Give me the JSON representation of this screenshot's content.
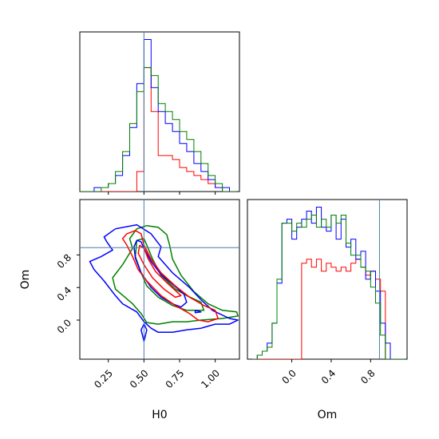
{
  "chart_data": {
    "type": "corner",
    "params": [
      "H0",
      "Om"
    ],
    "truth": {
      "H0": 0.5,
      "Om": 0.89
    },
    "x_labels": {
      "H0": "H0",
      "Om": "Om"
    },
    "y_labels": {
      "Om": "Om"
    },
    "panels": [
      {
        "id": "H0-histogram",
        "type": "histogram",
        "param": "H0",
        "xlim": [
          0.05,
          1.17
        ],
        "x_ticks": [
          0.25,
          0.5,
          0.75,
          1.0
        ],
        "bin_edges": [
          0.05,
          0.1,
          0.15,
          0.2,
          0.25,
          0.3,
          0.35,
          0.4,
          0.45,
          0.5,
          0.55,
          0.6,
          0.65,
          0.7,
          0.75,
          0.8,
          0.85,
          0.9,
          0.95,
          1.0,
          1.05,
          1.1,
          1.15
        ],
        "series": [
          {
            "name": "",
            "color": "#ff0000",
            "counts": [
              0,
              0,
              0,
              0,
              0,
              0,
              0,
              0,
              5,
              31,
              20,
              9,
              9,
              8,
              6,
              5,
              4,
              3,
              2,
              1,
              0,
              0
            ]
          },
          {
            "name": "",
            "color": "#0000ff",
            "counts": [
              0,
              0,
              1,
              1,
              2,
              4,
              9,
              16,
              27,
              38,
              26,
              20,
              17,
              15,
              12,
              10,
              7,
              5,
              3,
              1,
              1,
              0
            ]
          },
          {
            "name": "",
            "color": "#008000",
            "counts": [
              0,
              0,
              0,
              1,
              2,
              5,
              10,
              17,
              25,
              31,
              29,
              22,
              20,
              18,
              15,
              13,
              10,
              7,
              4,
              2,
              0,
              0
            ]
          }
        ]
      },
      {
        "id": "Om-histogram",
        "type": "histogram",
        "param": "Om",
        "xlim": [
          -0.45,
          1.17
        ],
        "x_ticks": [
          0.0,
          0.4,
          0.8
        ],
        "bin_edges": [
          -0.4,
          -0.35,
          -0.3,
          -0.25,
          -0.2,
          -0.15,
          -0.1,
          -0.05,
          0.0,
          0.05,
          0.1,
          0.15,
          0.2,
          0.25,
          0.3,
          0.35,
          0.4,
          0.45,
          0.5,
          0.55,
          0.6,
          0.65,
          0.7,
          0.75,
          0.8,
          0.85,
          0.9,
          0.95,
          1.0,
          1.05,
          1.1,
          1.15
        ],
        "series": [
          {
            "name": "",
            "color": "#ff0000",
            "counts": [
              0,
              0,
              0,
              0,
              0,
              0,
              0,
              0,
              0,
              0,
              24,
              25,
              23,
              25,
              22,
              24,
              23,
              22,
              23,
              22,
              24,
              25,
              23,
              21,
              22,
              20,
              17,
              0,
              0,
              0,
              0
            ]
          },
          {
            "name": "",
            "color": "#0000ff",
            "counts": [
              0,
              1,
              2,
              4,
              9,
              19,
              34,
              35,
              30,
              33,
              35,
              37,
              34,
              38,
              33,
              32,
              36,
              30,
              35,
              28,
              30,
              25,
              27,
              20,
              22,
              17,
              9,
              4,
              0,
              0,
              0
            ]
          },
          {
            "name": "",
            "color": "#008000",
            "counts": [
              0,
              1,
              2,
              3,
              9,
              20,
              34,
              34,
              32,
              34,
              33,
              35,
              36,
              33,
              35,
              33,
              36,
              34,
              36,
              29,
              26,
              26,
              23,
              22,
              18,
              14,
              6,
              0,
              0,
              0,
              0
            ]
          }
        ]
      },
      {
        "id": "H0-Om-contour",
        "type": "contour",
        "x_param": "H0",
        "y_param": "Om",
        "xlim": [
          0.05,
          1.17
        ],
        "ylim": [
          -0.48,
          1.48
        ],
        "x_ticks": [
          0.25,
          0.5,
          0.75,
          1.0
        ],
        "y_ticks": [
          0.0,
          0.4,
          0.8
        ],
        "series": [
          {
            "name": "",
            "color": "#008000",
            "contours": [
              [
                [
                  0.45,
                  1.12
                ],
                [
                  0.52,
                  1.16
                ],
                [
                  0.6,
                  1.14
                ],
                [
                  0.66,
                  1.05
                ],
                [
                  0.68,
                  0.92
                ],
                [
                  0.7,
                  0.75
                ],
                [
                  0.76,
                  0.55
                ],
                [
                  0.85,
                  0.35
                ],
                [
                  0.95,
                  0.2
                ],
                [
                  1.05,
                  0.12
                ],
                [
                  1.15,
                  0.1
                ],
                [
                  1.16,
                  0.05
                ],
                [
                  1.05,
                  0.02
                ],
                [
                  0.9,
                  0.0
                ],
                [
                  0.8,
                  -0.02
                ],
                [
                  0.7,
                  -0.02
                ],
                [
                  0.6,
                  -0.05
                ],
                [
                  0.52,
                  -0.03
                ],
                [
                  0.48,
                  0.08
                ],
                [
                  0.42,
                  0.2
                ],
                [
                  0.3,
                  0.38
                ],
                [
                  0.28,
                  0.52
                ],
                [
                  0.35,
                  0.68
                ],
                [
                  0.42,
                  0.88
                ],
                [
                  0.4,
                  1.0
                ],
                [
                  0.45,
                  1.12
                ]
              ],
              [
                [
                  0.45,
                  0.98
                ],
                [
                  0.5,
                  1.0
                ],
                [
                  0.52,
                  0.92
                ],
                [
                  0.56,
                  0.75
                ],
                [
                  0.62,
                  0.55
                ],
                [
                  0.72,
                  0.38
                ],
                [
                  0.8,
                  0.3
                ],
                [
                  0.9,
                  0.22
                ],
                [
                  0.92,
                  0.12
                ],
                [
                  0.8,
                  0.12
                ],
                [
                  0.7,
                  0.18
                ],
                [
                  0.6,
                  0.28
                ],
                [
                  0.52,
                  0.42
                ],
                [
                  0.48,
                  0.58
                ],
                [
                  0.44,
                  0.78
                ],
                [
                  0.45,
                  0.98
                ]
              ]
            ]
          },
          {
            "name": "",
            "color": "#0000ff",
            "contours": [
              [
                [
                  0.3,
                  1.12
                ],
                [
                  0.45,
                  1.17
                ],
                [
                  0.55,
                  1.06
                ],
                [
                  0.62,
                  0.9
                ],
                [
                  0.6,
                  0.78
                ],
                [
                  0.7,
                  0.58
                ],
                [
                  0.82,
                  0.4
                ],
                [
                  0.9,
                  0.25
                ],
                [
                  0.98,
                  0.12
                ],
                [
                  1.1,
                  0.02
                ],
                [
                  1.16,
                  0.0
                ],
                [
                  1.1,
                  -0.05
                ],
                [
                  1.0,
                  -0.05
                ],
                [
                  0.9,
                  -0.1
                ],
                [
                  0.8,
                  -0.12
                ],
                [
                  0.7,
                  -0.15
                ],
                [
                  0.6,
                  -0.15
                ],
                [
                  0.55,
                  -0.1
                ],
                [
                  0.5,
                  -0.02
                ],
                [
                  0.45,
                  0.1
                ],
                [
                  0.35,
                  0.2
                ],
                [
                  0.3,
                  0.3
                ],
                [
                  0.22,
                  0.48
                ],
                [
                  0.15,
                  0.62
                ],
                [
                  0.12,
                  0.72
                ],
                [
                  0.2,
                  0.78
                ],
                [
                  0.28,
                  0.86
                ],
                [
                  0.24,
                  0.96
                ],
                [
                  0.22,
                  1.02
                ],
                [
                  0.3,
                  1.12
                ]
              ],
              [
                [
                  0.45,
                  0.98
                ],
                [
                  0.48,
                  0.96
                ],
                [
                  0.5,
                  0.88
                ],
                [
                  0.55,
                  0.72
                ],
                [
                  0.62,
                  0.56
                ],
                [
                  0.7,
                  0.44
                ],
                [
                  0.78,
                  0.32
                ],
                [
                  0.8,
                  0.22
                ],
                [
                  0.76,
                  0.16
                ],
                [
                  0.7,
                  0.2
                ],
                [
                  0.62,
                  0.28
                ],
                [
                  0.55,
                  0.4
                ],
                [
                  0.48,
                  0.58
                ],
                [
                  0.44,
                  0.76
                ],
                [
                  0.43,
                  0.9
                ],
                [
                  0.45,
                  0.98
                ]
              ],
              [
                [
                  0.5,
                  -0.05
                ],
                [
                  0.52,
                  -0.12
                ],
                [
                  0.5,
                  -0.26
                ],
                [
                  0.48,
                  -0.12
                ],
                [
                  0.5,
                  -0.05
                ]
              ],
              [
                [
                  0.86,
                  0.12
                ],
                [
                  0.9,
                  0.1
                ],
                [
                  0.86,
                  0.09
                ],
                [
                  0.86,
                  0.12
                ]
              ]
            ]
          },
          {
            "name": "",
            "color": "#ff0000",
            "contours": [
              [
                [
                  0.38,
                  1.06
                ],
                [
                  0.44,
                  1.1
                ],
                [
                  0.48,
                  1.06
                ],
                [
                  0.5,
                  0.92
                ],
                [
                  0.55,
                  0.75
                ],
                [
                  0.62,
                  0.58
                ],
                [
                  0.72,
                  0.42
                ],
                [
                  0.82,
                  0.28
                ],
                [
                  0.92,
                  0.18
                ],
                [
                  1.0,
                  0.12
                ],
                [
                  1.02,
                  0.02
                ],
                [
                  0.95,
                  -0.02
                ],
                [
                  0.88,
                  0.0
                ],
                [
                  0.82,
                  0.08
                ],
                [
                  0.72,
                  0.18
                ],
                [
                  0.62,
                  0.3
                ],
                [
                  0.52,
                  0.48
                ],
                [
                  0.46,
                  0.62
                ],
                [
                  0.42,
                  0.78
                ],
                [
                  0.38,
                  0.92
                ],
                [
                  0.35,
                  1.0
                ],
                [
                  0.38,
                  1.06
                ]
              ],
              [
                [
                  0.47,
                  0.92
                ],
                [
                  0.5,
                  0.88
                ],
                [
                  0.53,
                  0.75
                ],
                [
                  0.58,
                  0.6
                ],
                [
                  0.66,
                  0.46
                ],
                [
                  0.76,
                  0.3
                ],
                [
                  0.72,
                  0.28
                ],
                [
                  0.64,
                  0.38
                ],
                [
                  0.56,
                  0.52
                ],
                [
                  0.5,
                  0.68
                ],
                [
                  0.46,
                  0.82
                ],
                [
                  0.47,
                  0.92
                ]
              ]
            ]
          }
        ]
      }
    ]
  }
}
